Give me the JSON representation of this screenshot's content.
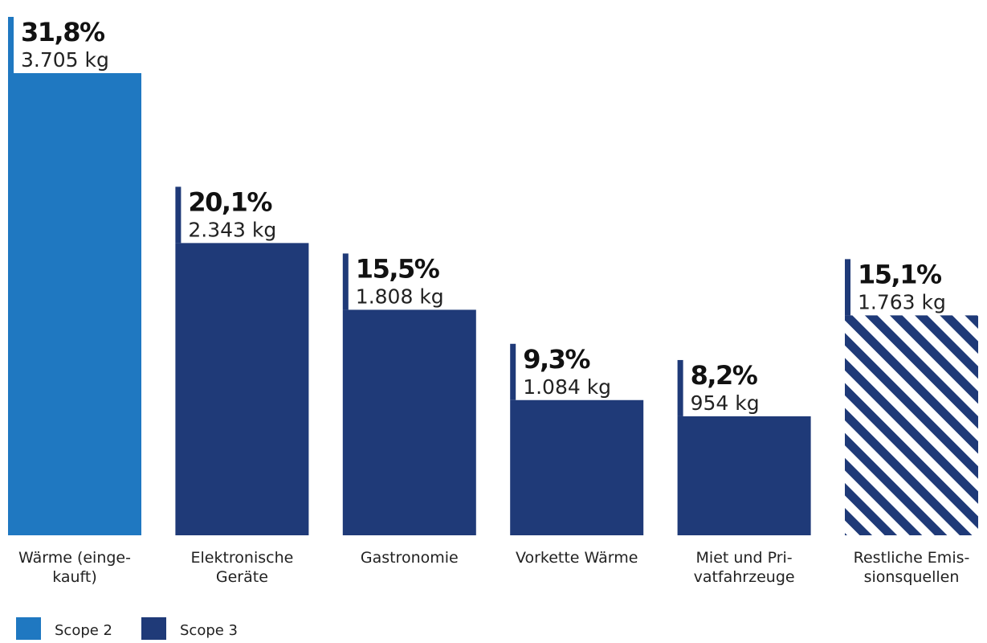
{
  "chart_data": {
    "type": "bar",
    "title": "",
    "xlabel": "",
    "ylabel": "",
    "ylim": [
      0,
      3705
    ],
    "grid": false,
    "legend_placement": "bottom-left",
    "unit": "kg",
    "categories": [
      [
        "Wärme (einge-",
        "kauft)"
      ],
      [
        "Elektronische",
        "Geräte"
      ],
      [
        "Gastronomie"
      ],
      [
        "Vorkette Wärme"
      ],
      [
        "Miet und Pri-",
        "vatfahrzeuge"
      ],
      [
        "Restliche Emis-",
        "sionsquellen"
      ]
    ],
    "values": [
      3705,
      2343,
      1808,
      1084,
      954,
      1763
    ],
    "value_labels": [
      "3.705 kg",
      "2.343 kg",
      "1.808 kg",
      "1.084 kg",
      "954 kg",
      "1.763 kg"
    ],
    "percent_labels": [
      "31,8%",
      "20,1%",
      "15,5%",
      "9,3%",
      "8,2%",
      "15,1%"
    ],
    "scope": [
      "Scope 2",
      "Scope 3",
      "Scope 3",
      "Scope 3",
      "Scope 3",
      "Scope 3"
    ],
    "hatched": [
      false,
      false,
      false,
      false,
      false,
      true
    ],
    "legend": [
      {
        "label": "Scope 2",
        "color": "#1f78c1"
      },
      {
        "label": "Scope 3",
        "color": "#1f3a78"
      }
    ],
    "colors": {
      "Scope 2": "#1f78c1",
      "Scope 3": "#1f3a78",
      "hatch_background": "#ffffff",
      "text": "#222222",
      "label_bold": "#111111"
    }
  }
}
